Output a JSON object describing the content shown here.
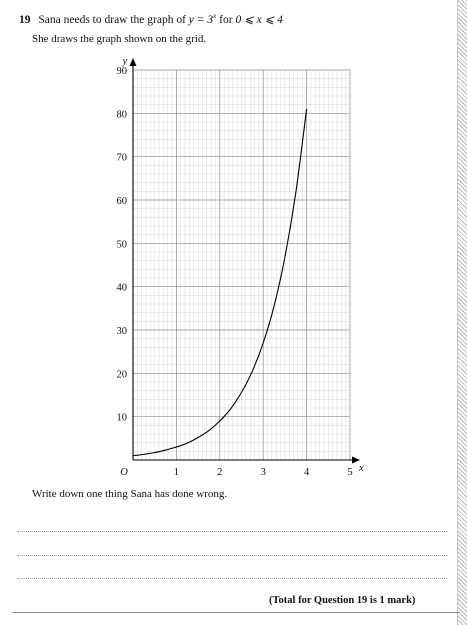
{
  "question": {
    "number": "19",
    "text_intro": "Sana needs to draw the graph of",
    "equation_lhs": "y = 3",
    "equation_exponent": "x",
    "text_for": "for",
    "domain": "0 ⩽ x ⩽ 4",
    "statement": "She draws the graph shown on the grid.",
    "prompt": "Write down one thing Sana has done wrong.",
    "total": "(Total for Question 19 is 1 mark)"
  },
  "chart_data": {
    "type": "line",
    "x_axis_label": "x",
    "y_axis_label": "y",
    "origin_label": "O",
    "xlim": [
      0,
      5
    ],
    "ylim": [
      0,
      90
    ],
    "x_ticks": [
      1,
      2,
      3,
      4,
      5
    ],
    "y_ticks": [
      10,
      20,
      30,
      40,
      50,
      60,
      70,
      80,
      90
    ],
    "grid": true,
    "series": [
      {
        "x": [
          0,
          0.25,
          0.5,
          0.75,
          1,
          1.25,
          1.5,
          1.75,
          2,
          2.25,
          2.5,
          2.75,
          3,
          3.25,
          3.5,
          3.75,
          4
        ],
        "y": [
          1,
          1.3,
          1.7,
          2.3,
          3,
          3.9,
          5.2,
          6.8,
          9,
          11.8,
          15.6,
          20.5,
          27,
          35.5,
          46.8,
          61.6,
          81
        ]
      }
    ]
  }
}
